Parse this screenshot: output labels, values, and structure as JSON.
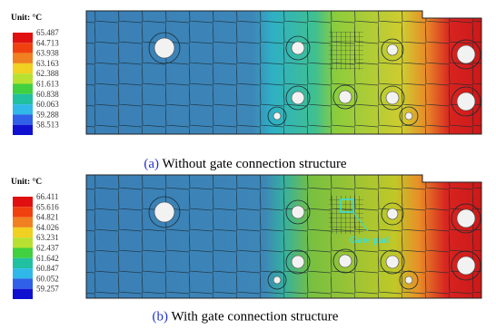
{
  "panels": [
    {
      "legend": {
        "unit": "Unit: °C",
        "labels": [
          "65.487",
          "64.713",
          "63.938",
          "63.163",
          "62.388",
          "61.613",
          "60.838",
          "60.063",
          "59.288",
          "58.513"
        ]
      },
      "caption": {
        "label": "(a)",
        "text": "Without gate connection structure"
      }
    },
    {
      "legend": {
        "unit": "Unit: °C",
        "labels": [
          "66.411",
          "65.616",
          "64.821",
          "64.026",
          "63.231",
          "62.437",
          "61.642",
          "60.847",
          "60.052",
          "59.257"
        ]
      },
      "caption": {
        "label": "(b)",
        "text": "With gate connection structure"
      },
      "annotation": "Gate pad"
    }
  ]
}
